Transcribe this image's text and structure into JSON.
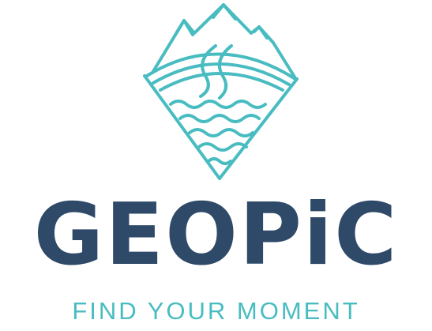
{
  "brand": {
    "name": "GEOPiC",
    "tagline": "FIND YOUR MOMENT",
    "emblem_icon": "mountain-wave-diamond-icon"
  },
  "colors": {
    "wordmark": "#2f4a68",
    "accent": "#48bcc1",
    "background": "#ffffff"
  }
}
